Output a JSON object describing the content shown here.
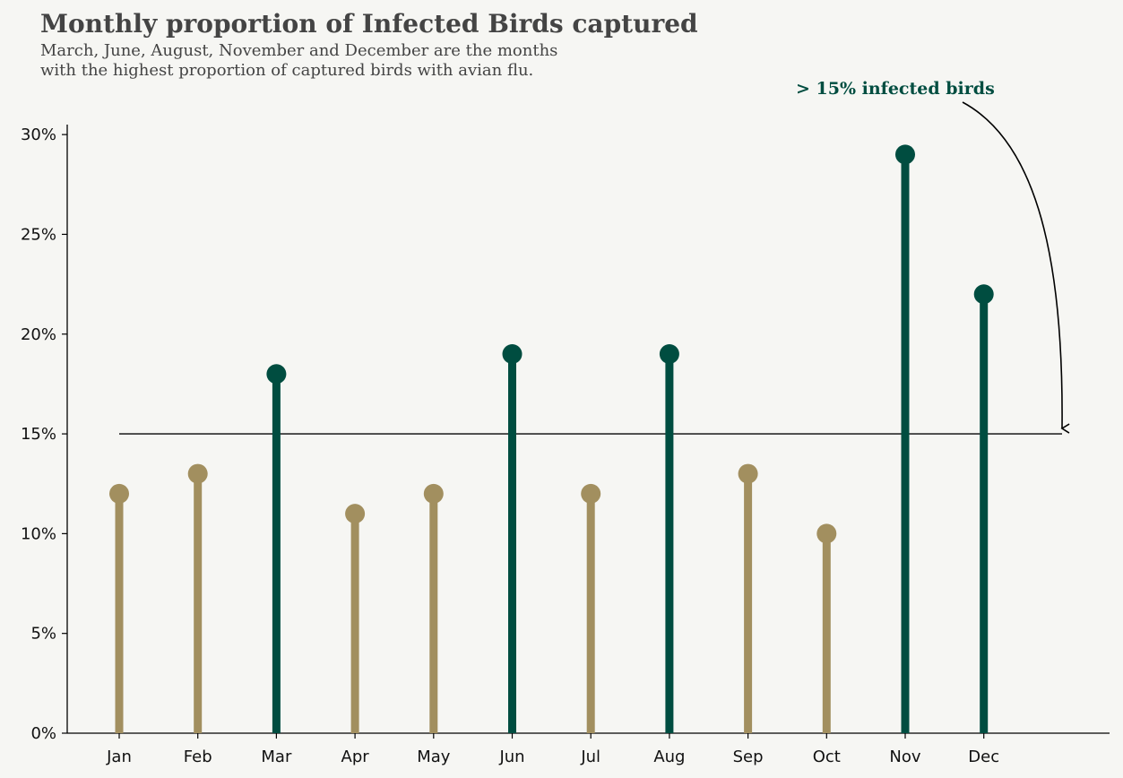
{
  "title": "Monthly proportion of Infected Birds captured",
  "subtitle_lines": [
    "March, June, August, November and December are the months",
    "with the highest proportion of captured birds with avian flu."
  ],
  "annotation": "> 15% infected birds",
  "colors": {
    "background": "#f6f6f3",
    "highlight": "#004d40",
    "normal": "#a28f5f",
    "threshold_line": "#444444",
    "title_text": "#444444",
    "annotation_text": "#004d40"
  },
  "chart_data": {
    "type": "lollipop",
    "title": "Monthly proportion of Infected Birds captured",
    "xlabel": "",
    "ylabel": "",
    "categories": [
      "Jan",
      "Feb",
      "Mar",
      "Apr",
      "May",
      "Jun",
      "Jul",
      "Aug",
      "Sep",
      "Oct",
      "Nov",
      "Dec"
    ],
    "values": [
      12,
      13,
      18,
      11,
      12,
      19,
      12,
      19,
      13,
      10,
      29,
      22
    ],
    "value_unit": "%",
    "ylim": [
      0,
      30.5
    ],
    "yticks": [
      0,
      5,
      10,
      15,
      20,
      25,
      30
    ],
    "ytick_labels": [
      "0%",
      "5%",
      "10%",
      "15%",
      "20%",
      "25%",
      "30%"
    ],
    "threshold": 15,
    "highlight_rule": "value > 15",
    "grid": false,
    "legend": "none"
  }
}
